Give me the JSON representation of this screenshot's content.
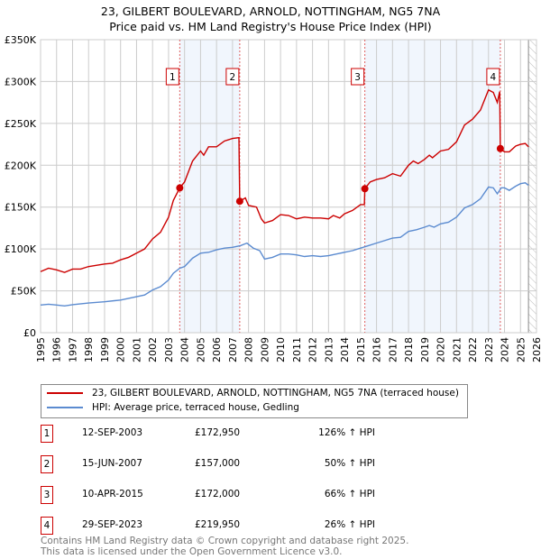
{
  "chart_data": {
    "type": "line",
    "title": "23, GILBERT BOULEVARD, ARNOLD, NOTTINGHAM, NG5 7NA",
    "subtitle": "Price paid vs. HM Land Registry's House Price Index (HPI)",
    "xlim": [
      1995,
      2026
    ],
    "ylim": [
      0,
      350000
    ],
    "x_ticks": [
      "1995",
      "1996",
      "1997",
      "1998",
      "1999",
      "2000",
      "2001",
      "2002",
      "2003",
      "2004",
      "2005",
      "2006",
      "2007",
      "2008",
      "2009",
      "2010",
      "2011",
      "2012",
      "2013",
      "2014",
      "2015",
      "2016",
      "2017",
      "2018",
      "2019",
      "2020",
      "2021",
      "2022",
      "2023",
      "2024",
      "2025",
      "2026"
    ],
    "y_ticks": [
      {
        "v": 0,
        "label": "£0"
      },
      {
        "v": 50000,
        "label": "£50K"
      },
      {
        "v": 100000,
        "label": "£100K"
      },
      {
        "v": 150000,
        "label": "£150K"
      },
      {
        "v": 200000,
        "label": "£200K"
      },
      {
        "v": 250000,
        "label": "£250K"
      },
      {
        "v": 300000,
        "label": "£300K"
      },
      {
        "v": 350000,
        "label": "£350K"
      }
    ],
    "grid": true,
    "series": [
      {
        "name": "23, GILBERT BOULEVARD, ARNOLD, NOTTINGHAM, NG5 7NA (terraced house)",
        "color": "#cc0000",
        "points": [
          [
            1995,
            73000
          ],
          [
            1995.5,
            77000
          ],
          [
            1996,
            75000
          ],
          [
            1996.5,
            72000
          ],
          [
            1997,
            76000
          ],
          [
            1997.5,
            76000
          ],
          [
            1998,
            79000
          ],
          [
            1999,
            82000
          ],
          [
            1999.5,
            83000
          ],
          [
            2000,
            87000
          ],
          [
            2000.5,
            90000
          ],
          [
            2001,
            95000
          ],
          [
            2001.5,
            100000
          ],
          [
            2002,
            112000
          ],
          [
            2002.5,
            120000
          ],
          [
            2003,
            138000
          ],
          [
            2003.3,
            158000
          ],
          [
            2003.7,
            172950
          ],
          [
            2004,
            180000
          ],
          [
            2004.5,
            205000
          ],
          [
            2005,
            217000
          ],
          [
            2005.2,
            212000
          ],
          [
            2005.5,
            222000
          ],
          [
            2006,
            222000
          ],
          [
            2006.5,
            229000
          ],
          [
            2007,
            232000
          ],
          [
            2007.4,
            233000
          ],
          [
            2007.45,
            157000
          ],
          [
            2007.8,
            161000
          ],
          [
            2008,
            152000
          ],
          [
            2008.5,
            150000
          ],
          [
            2008.8,
            136000
          ],
          [
            2009,
            131000
          ],
          [
            2009.5,
            134000
          ],
          [
            2010,
            141000
          ],
          [
            2010.5,
            140000
          ],
          [
            2011,
            136000
          ],
          [
            2011.5,
            138000
          ],
          [
            2012,
            137000
          ],
          [
            2012.5,
            137000
          ],
          [
            2013,
            136000
          ],
          [
            2013.3,
            140000
          ],
          [
            2013.7,
            137000
          ],
          [
            2014,
            142000
          ],
          [
            2014.5,
            146000
          ],
          [
            2015,
            153000
          ],
          [
            2015.24,
            153000
          ],
          [
            2015.27,
            172000
          ],
          [
            2015.6,
            180000
          ],
          [
            2016,
            183000
          ],
          [
            2016.5,
            185000
          ],
          [
            2017,
            190000
          ],
          [
            2017.5,
            187000
          ],
          [
            2018,
            200000
          ],
          [
            2018.3,
            205000
          ],
          [
            2018.6,
            202000
          ],
          [
            2019,
            207000
          ],
          [
            2019.3,
            212000
          ],
          [
            2019.5,
            209000
          ],
          [
            2020,
            217000
          ],
          [
            2020.5,
            219000
          ],
          [
            2021,
            228000
          ],
          [
            2021.5,
            248000
          ],
          [
            2022,
            255000
          ],
          [
            2022.5,
            266000
          ],
          [
            2023,
            290000
          ],
          [
            2023.3,
            287000
          ],
          [
            2023.55,
            275000
          ],
          [
            2023.7,
            288000
          ],
          [
            2023.74,
            219950
          ],
          [
            2024,
            216000
          ],
          [
            2024.3,
            216000
          ],
          [
            2024.7,
            223000
          ],
          [
            2025,
            225000
          ],
          [
            2025.3,
            226000
          ],
          [
            2025.5,
            222000
          ]
        ]
      },
      {
        "name": "HPI: Average price, terraced house, Gedling",
        "color": "#5b8bd0",
        "points": [
          [
            1995,
            33000
          ],
          [
            1995.5,
            34000
          ],
          [
            1996,
            33000
          ],
          [
            1996.5,
            32000
          ],
          [
            1997,
            33500
          ],
          [
            1998,
            35500
          ],
          [
            1999,
            37000
          ],
          [
            2000,
            39000
          ],
          [
            2000.5,
            41000
          ],
          [
            2001,
            43000
          ],
          [
            2001.5,
            45000
          ],
          [
            2002,
            51000
          ],
          [
            2002.5,
            55000
          ],
          [
            2003,
            63000
          ],
          [
            2003.3,
            71000
          ],
          [
            2003.7,
            77000
          ],
          [
            2004,
            79000
          ],
          [
            2004.5,
            89000
          ],
          [
            2005,
            95000
          ],
          [
            2005.5,
            96000
          ],
          [
            2006,
            99000
          ],
          [
            2006.5,
            101000
          ],
          [
            2007,
            102000
          ],
          [
            2007.5,
            104000
          ],
          [
            2007.9,
            107000
          ],
          [
            2008.3,
            101000
          ],
          [
            2008.7,
            98000
          ],
          [
            2009,
            88000
          ],
          [
            2009.5,
            90000
          ],
          [
            2010,
            94000
          ],
          [
            2010.5,
            94000
          ],
          [
            2011,
            93000
          ],
          [
            2011.5,
            91000
          ],
          [
            2012,
            92000
          ],
          [
            2012.5,
            91000
          ],
          [
            2013,
            92000
          ],
          [
            2013.5,
            94000
          ],
          [
            2014,
            96000
          ],
          [
            2014.5,
            98000
          ],
          [
            2015,
            101000
          ],
          [
            2015.5,
            104000
          ],
          [
            2016,
            107000
          ],
          [
            2016.5,
            110000
          ],
          [
            2017,
            113000
          ],
          [
            2017.5,
            114000
          ],
          [
            2018,
            121000
          ],
          [
            2018.5,
            123000
          ],
          [
            2019,
            126000
          ],
          [
            2019.3,
            128000
          ],
          [
            2019.6,
            126000
          ],
          [
            2020,
            130000
          ],
          [
            2020.5,
            132000
          ],
          [
            2021,
            138000
          ],
          [
            2021.5,
            149000
          ],
          [
            2022,
            153000
          ],
          [
            2022.5,
            160000
          ],
          [
            2023,
            174000
          ],
          [
            2023.3,
            173000
          ],
          [
            2023.55,
            166000
          ],
          [
            2023.8,
            173000
          ],
          [
            2024,
            173000
          ],
          [
            2024.3,
            170000
          ],
          [
            2024.7,
            175000
          ],
          [
            2025,
            178000
          ],
          [
            2025.3,
            179000
          ],
          [
            2025.5,
            176000
          ]
        ]
      }
    ],
    "sales": [
      {
        "num": "1",
        "x": 2003.7,
        "price": 172950,
        "date": "12-SEP-2003",
        "price_label": "£172,950",
        "hpi": "126% ↑ HPI"
      },
      {
        "num": "2",
        "x": 2007.45,
        "price": 157000,
        "date": "15-JUN-2007",
        "price_label": "£157,000",
        "hpi": "50% ↑ HPI"
      },
      {
        "num": "3",
        "x": 2015.27,
        "price": 172000,
        "date": "10-APR-2015",
        "price_label": "£172,000",
        "hpi": "66% ↑ HPI"
      },
      {
        "num": "4",
        "x": 2023.74,
        "price": 219950,
        "date": "29-SEP-2023",
        "price_label": "£219,950",
        "hpi": "26% ↑ HPI"
      }
    ],
    "shaded_ranges": [
      [
        2003.7,
        2007.45
      ],
      [
        2015.27,
        2023.74
      ]
    ],
    "forecast_hatch_from": 2025.5,
    "legend_position": "bottom"
  },
  "footer": {
    "line1": "Contains HM Land Registry data © Crown copyright and database right 2025.",
    "line2": "This data is licensed under the Open Government Licence v3.0."
  }
}
